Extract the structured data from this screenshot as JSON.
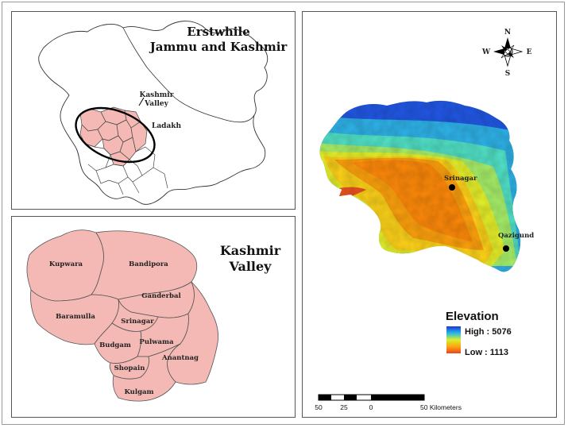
{
  "inset_jk": {
    "title_line1": "Erstwhile",
    "title_line2": "Jammu and Kashmir",
    "label_valley_line1": "Kashmir",
    "label_valley_line2": "Valley",
    "label_ladakh": "Ladakh"
  },
  "valley_map": {
    "title_line1": "Kashmir",
    "title_line2": "Valley",
    "fill_color": "#f4b9b4",
    "districts": [
      "Kupwara",
      "Bandipora",
      "Baramulla",
      "Ganderbal",
      "Srinagar",
      "Budgam",
      "Pulwama",
      "Anantnag",
      "Shopain",
      "Kulgam"
    ]
  },
  "elevation_map": {
    "compass": {
      "north": "N",
      "south": "S",
      "east": "E",
      "west": "W"
    },
    "places": [
      "Srinagar",
      "Qazigund"
    ],
    "legend": {
      "title": "Elevation",
      "high_label": "High : 5076",
      "low_label": "Low : 1113",
      "high_color": "#1f4ad8",
      "low_color": "#e8451f"
    },
    "scale_bar": {
      "ticks": [
        "50",
        "25",
        "0",
        "50 Kilometers"
      ]
    }
  }
}
